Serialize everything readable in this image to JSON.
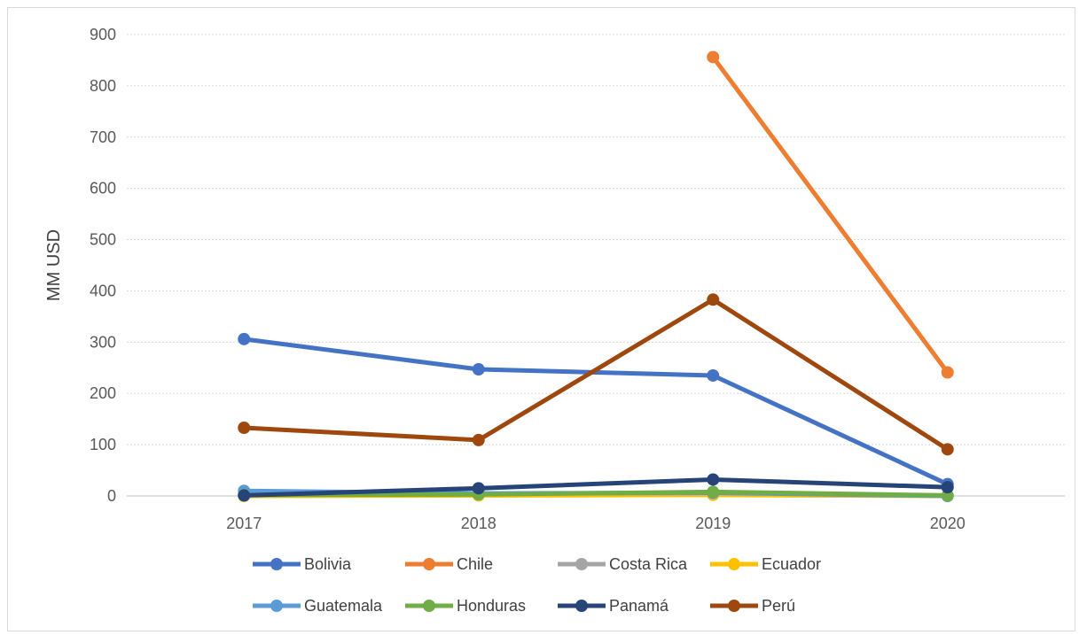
{
  "chart_data": {
    "type": "line",
    "title": "",
    "xlabel": "",
    "ylabel": "MM USD",
    "x": [
      "2017",
      "2018",
      "2019",
      "2020"
    ],
    "yticks": [
      "0",
      "100",
      "200",
      "300",
      "400",
      "500",
      "600",
      "700",
      "800",
      "900"
    ],
    "ylim": [
      0,
      900
    ],
    "grid": true,
    "legend_position": "bottom",
    "series": [
      {
        "name": "Bolivia",
        "color": "#4472C4",
        "values": [
          306,
          247,
          235,
          23
        ]
      },
      {
        "name": "Chile",
        "color": "#ED7D31",
        "values": [
          null,
          null,
          856,
          241
        ]
      },
      {
        "name": "Costa Rica",
        "color": "#A5A5A5",
        "values": [
          null,
          null,
          null,
          null
        ]
      },
      {
        "name": "Ecuador",
        "color": "#FFC000",
        "values": [
          0,
          1,
          2,
          0
        ]
      },
      {
        "name": "Guatemala",
        "color": "#5B9BD5",
        "values": [
          10,
          5,
          6,
          0
        ]
      },
      {
        "name": "Honduras",
        "color": "#70AD47",
        "values": [
          2,
          3,
          8,
          1
        ]
      },
      {
        "name": "Panamá",
        "color": "#264478",
        "values": [
          1,
          15,
          32,
          17
        ]
      },
      {
        "name": "Perú",
        "color": "#9E480E",
        "values": [
          133,
          109,
          383,
          91
        ]
      }
    ]
  }
}
